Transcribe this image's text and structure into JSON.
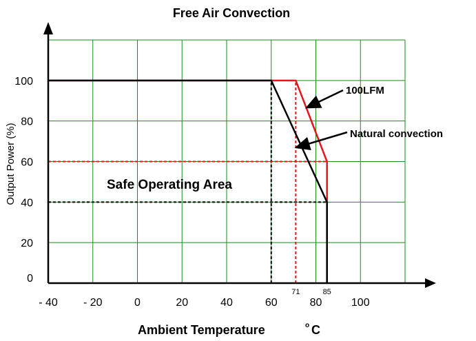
{
  "chart_data": {
    "type": "line",
    "title": "Free Air Convection",
    "xlabel": "Ambient Temperature",
    "xlabel_unit_sup": "o",
    "xlabel_unit": "C",
    "ylabel": "Output Power (%)",
    "xlim": [
      -40,
      120
    ],
    "ylim": [
      0,
      120
    ],
    "x_ticks": [
      {
        "value": -40,
        "label": "- 40"
      },
      {
        "value": -20,
        "label": "- 20"
      },
      {
        "value": 0,
        "label": "0"
      },
      {
        "value": 20,
        "label": "20"
      },
      {
        "value": 40,
        "label": "40"
      },
      {
        "value": 60,
        "label": "60"
      },
      {
        "value": 80,
        "label": "80"
      },
      {
        "value": 100,
        "label": "100"
      }
    ],
    "x_minor_labels": [
      {
        "value": 71,
        "label": "71"
      },
      {
        "value": 85,
        "label": "85"
      }
    ],
    "y_ticks": [
      0,
      20,
      40,
      60,
      80,
      100
    ],
    "grid": true,
    "series": [
      {
        "name": "100LFM",
        "color": "#e8141b",
        "x": [
          -40,
          71,
          85,
          85
        ],
        "y": [
          100,
          100,
          60,
          0
        ]
      },
      {
        "name": "Natural convection",
        "color": "#000000",
        "x": [
          -40,
          60,
          85,
          85
        ],
        "y": [
          100,
          100,
          40,
          0
        ]
      }
    ],
    "reference_lines": [
      {
        "color": "#000000",
        "from": [
          60,
          0
        ],
        "to": [
          60,
          100
        ]
      },
      {
        "color": "#e8141b",
        "from": [
          71,
          0
        ],
        "to": [
          71,
          100
        ]
      },
      {
        "color": "#e8141b",
        "from": [
          -40,
          60
        ],
        "to": [
          85,
          60
        ]
      },
      {
        "color": "#000000",
        "from": [
          -40,
          40
        ],
        "to": [
          85,
          40
        ]
      }
    ],
    "annotations": {
      "lfm": "100LFM",
      "natural": "Natural convection",
      "area": "Safe Operating Area"
    },
    "grid_color": "#1a8a1a"
  }
}
